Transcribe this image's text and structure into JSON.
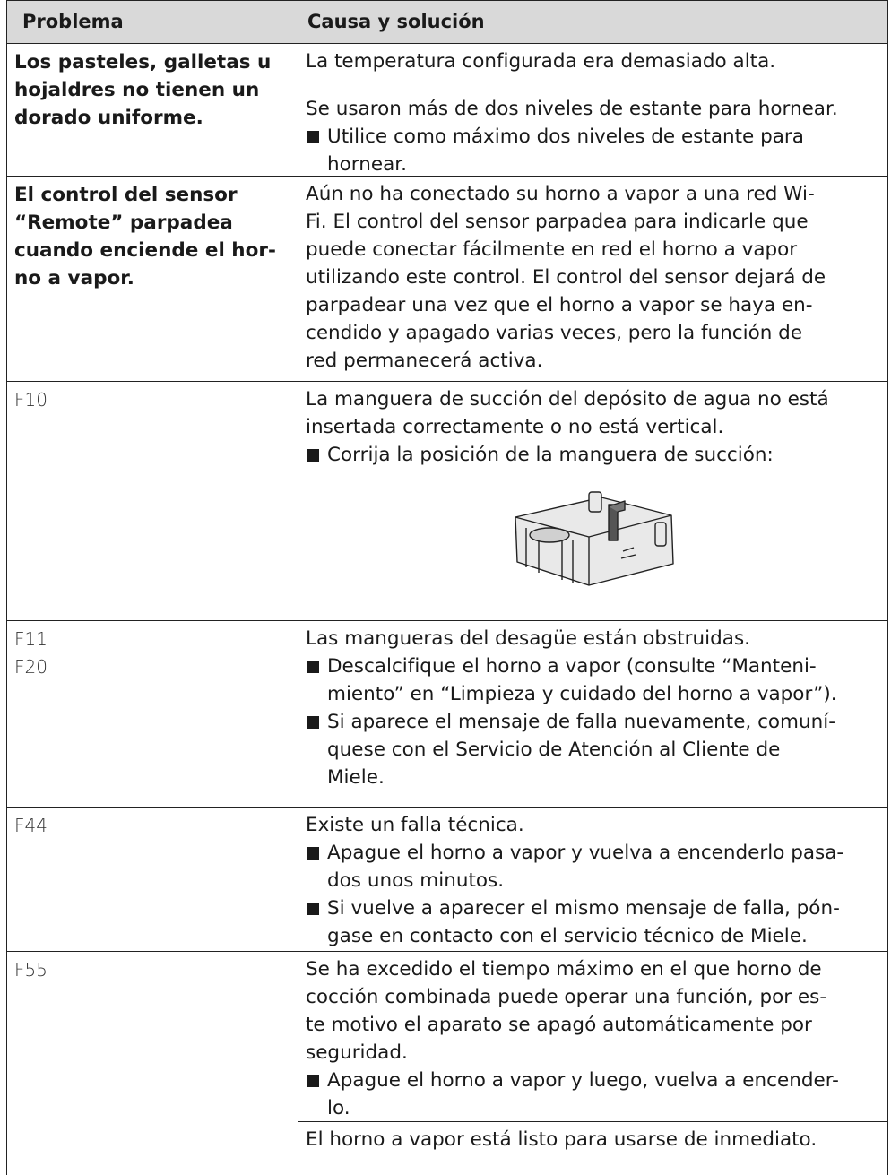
{
  "header": {
    "problem": "Problema",
    "cause": "Causa y solución"
  },
  "rows": [
    {
      "style": "bold",
      "problem": [
        "Los pasteles, galletas u",
        "hojaldres no tienen un",
        "dorado uniforme."
      ],
      "causes": [
        [
          {
            "kind": "text",
            "lines": [
              "La temperatura configurada era demasiado alta."
            ]
          }
        ],
        [
          {
            "kind": "text",
            "lines": [
              "Se usaron más de dos niveles de estante para hornear."
            ]
          },
          {
            "kind": "bullet",
            "lines": [
              "Utilice como máximo dos niveles de estante para",
              "hornear."
            ]
          }
        ]
      ]
    },
    {
      "style": "bold",
      "problem": [
        "El control del sensor",
        "“Remote” parpadea",
        "cuando enciende el hor-",
        "no a vapor."
      ],
      "causes": [
        [
          {
            "kind": "text",
            "lines": [
              "Aún no ha conectado su horno a vapor a una red Wi-",
              "Fi. El control del sensor parpadea para indicarle que",
              "puede conectar fácilmente en red el horno a vapor",
              "utilizando este control. El control del sensor dejará de",
              "parpadear una vez que el horno a vapor se haya en-",
              "cendido y apagado varias veces, pero la función de",
              "red permanecerá activa."
            ]
          }
        ]
      ]
    },
    {
      "style": "code",
      "problem": [
        "F10"
      ],
      "causes": [
        [
          {
            "kind": "text",
            "lines": [
              "La manguera de succión del depósito de agua no está",
              "insertada correctamente o no está vertical."
            ]
          },
          {
            "kind": "bullet",
            "lines": [
              "Corrija la posición de la manguera de succión:"
            ]
          },
          {
            "kind": "figure"
          }
        ]
      ]
    },
    {
      "style": "code",
      "problem": [
        "F11",
        "F20"
      ],
      "causes": [
        [
          {
            "kind": "text",
            "lines": [
              "Las mangueras del desagüe están obstruidas."
            ]
          },
          {
            "kind": "bullet",
            "lines": [
              "Descalcifique el horno a vapor (consulte “Manteni-",
              "miento” en “Limpieza y cuidado del horno a vapor”)."
            ]
          },
          {
            "kind": "bullet",
            "lines": [
              "Si aparece el mensaje de falla nuevamente, comuní-",
              "quese con el Servicio de Atención al Cliente de",
              "Miele."
            ]
          }
        ]
      ]
    },
    {
      "style": "code",
      "problem": [
        "F44"
      ],
      "causes": [
        [
          {
            "kind": "text",
            "lines": [
              "Existe un falla técnica."
            ]
          },
          {
            "kind": "bullet",
            "lines": [
              "Apague el horno a vapor y vuelva a encenderlo pasa-",
              "dos unos minutos."
            ]
          },
          {
            "kind": "bullet",
            "lines": [
              "Si vuelve a aparecer el mismo mensaje de falla, pón-",
              "gase en contacto con el servicio técnico de Miele."
            ]
          }
        ]
      ]
    },
    {
      "style": "code",
      "problem": [
        "F55"
      ],
      "causes": [
        [
          {
            "kind": "text",
            "lines": [
              "Se ha excedido el tiempo máximo en el que horno de",
              "cocción combinada puede operar una función, por es-",
              "te motivo el aparato se apagó automáticamente por",
              "seguridad."
            ]
          },
          {
            "kind": "bullet",
            "lines": [
              "Apague el horno a vapor y luego, vuelva a encender-",
              "lo."
            ]
          }
        ],
        [
          {
            "kind": "text",
            "lines": [
              "El horno a vapor está listo para usarse de inmediato."
            ]
          }
        ]
      ]
    }
  ]
}
